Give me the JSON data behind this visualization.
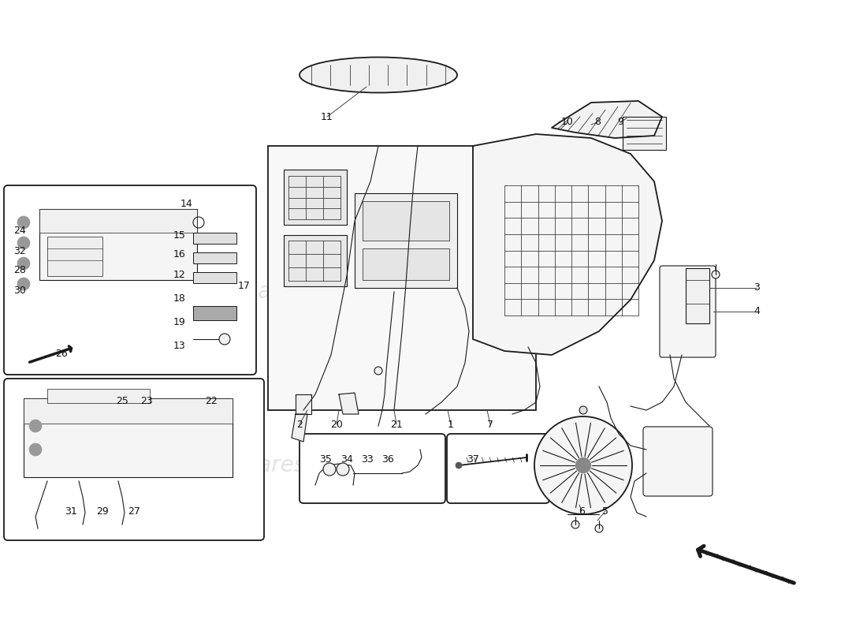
{
  "bg": "#ffffff",
  "lc": "#1a1a1a",
  "wm_color": "#d0d0d0",
  "fig_w": 11.0,
  "fig_h": 8.0,
  "dpi": 100,
  "labels": [
    [
      "11",
      415,
      148
    ],
    [
      "10",
      720,
      155
    ],
    [
      "8",
      758,
      155
    ],
    [
      "9",
      787,
      155
    ],
    [
      "3",
      960,
      365
    ],
    [
      "4",
      960,
      395
    ],
    [
      "14",
      237,
      258
    ],
    [
      "15",
      228,
      298
    ],
    [
      "16",
      228,
      323
    ],
    [
      "12",
      228,
      348
    ],
    [
      "18",
      228,
      378
    ],
    [
      "17",
      310,
      363
    ],
    [
      "19",
      228,
      408
    ],
    [
      "13",
      228,
      438
    ],
    [
      "24",
      25,
      293
    ],
    [
      "32",
      25,
      318
    ],
    [
      "28",
      25,
      343
    ],
    [
      "30",
      25,
      368
    ],
    [
      "26",
      78,
      448
    ],
    [
      "25",
      155,
      508
    ],
    [
      "23",
      186,
      508
    ],
    [
      "22",
      268,
      508
    ],
    [
      "31",
      90,
      648
    ],
    [
      "29",
      130,
      648
    ],
    [
      "27",
      170,
      648
    ],
    [
      "2",
      380,
      538
    ],
    [
      "20",
      427,
      538
    ],
    [
      "21",
      503,
      538
    ],
    [
      "1",
      572,
      538
    ],
    [
      "7",
      622,
      538
    ],
    [
      "35",
      413,
      583
    ],
    [
      "34",
      440,
      583
    ],
    [
      "33",
      466,
      583
    ],
    [
      "36",
      492,
      583
    ],
    [
      "37",
      600,
      583
    ],
    [
      "6",
      738,
      648
    ],
    [
      "5",
      768,
      648
    ]
  ]
}
